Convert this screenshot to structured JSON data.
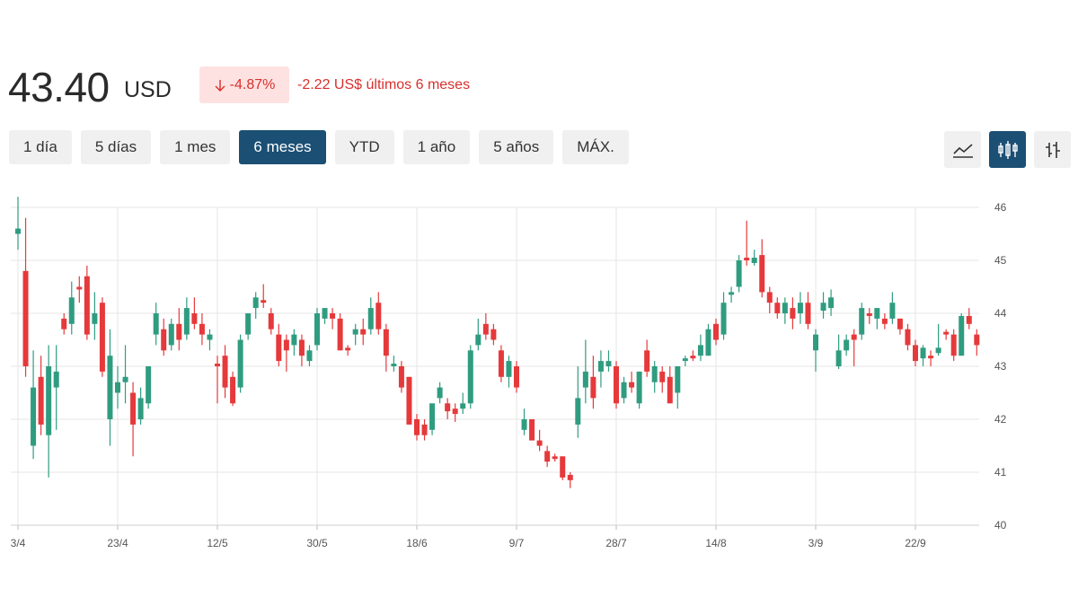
{
  "header": {
    "price": "43.40",
    "currency": "USD",
    "change_pct": "-4.87%",
    "change_abs": "-2.22 US$ últimos 6 meses"
  },
  "ranges": {
    "items": [
      "1 día",
      "5 días",
      "1 mes",
      "6 meses",
      "YTD",
      "1 año",
      "5 años",
      "MÁX."
    ],
    "active": 3
  },
  "chart_data": {
    "type": "candlestick",
    "categories": [
      "3/4",
      null,
      null,
      null,
      null,
      null,
      null,
      null,
      null,
      null,
      null,
      null,
      null,
      "23/4",
      null,
      null,
      null,
      null,
      null,
      null,
      null,
      null,
      null,
      null,
      null,
      null,
      "12/5",
      null,
      null,
      null,
      null,
      null,
      null,
      null,
      null,
      null,
      null,
      null,
      null,
      "30/5",
      null,
      null,
      null,
      null,
      null,
      null,
      null,
      null,
      null,
      null,
      null,
      null,
      "18/6",
      null,
      null,
      null,
      null,
      null,
      null,
      null,
      null,
      null,
      null,
      null,
      null,
      "9/7",
      null,
      null,
      null,
      null,
      null,
      null,
      null,
      null,
      null,
      null,
      null,
      null,
      "28/7",
      null,
      null,
      null,
      null,
      null,
      null,
      null,
      null,
      null,
      null,
      null,
      null,
      "14/8",
      null,
      null,
      null,
      null,
      null,
      null,
      null,
      null,
      null,
      null,
      null,
      null,
      "3/9",
      null,
      null,
      null,
      null,
      null,
      null,
      null,
      null,
      null,
      null,
      null,
      null,
      "22/9",
      null,
      null,
      null,
      null,
      null,
      null,
      null,
      null
    ],
    "open": [
      45.5,
      44.8,
      41.5,
      42.8,
      41.7,
      42.6,
      43.9,
      43.8,
      44.5,
      44.7,
      43.8,
      44.2,
      42.0,
      42.5,
      42.7,
      42.5,
      42.0,
      42.3,
      43.6,
      43.7,
      43.4,
      43.8,
      43.6,
      44.0,
      43.8,
      43.5,
      43.05,
      43.2,
      42.8,
      42.6,
      43.6,
      44.1,
      44.25,
      44.0,
      43.6,
      43.5,
      43.4,
      43.5,
      43.1,
      43.4,
      43.9,
      44.0,
      43.9,
      43.35,
      43.6,
      43.7,
      43.7,
      44.2,
      43.7,
      43.0,
      43.0,
      42.8,
      42.0,
      41.9,
      41.8,
      42.4,
      42.3,
      42.2,
      42.2,
      42.3,
      43.4,
      43.8,
      43.7,
      43.3,
      42.8,
      43.0,
      41.8,
      42.0,
      41.6,
      41.4,
      41.3,
      41.3,
      40.95,
      41.9,
      42.6,
      42.8,
      42.9,
      43.0,
      43.0,
      42.4,
      42.7,
      42.3,
      43.3,
      42.7,
      42.9,
      42.8,
      42.5,
      43.1,
      43.2,
      43.2,
      43.2,
      43.8,
      43.6,
      44.35,
      44.5,
      45.05,
      44.95,
      45.1,
      44.4,
      44.2,
      44.0,
      44.1,
      44.0,
      44.2,
      43.3,
      44.05,
      44.1,
      43.0,
      43.3,
      43.6,
      43.6,
      44.0,
      43.9,
      43.9,
      43.9,
      43.9,
      43.7,
      43.4,
      43.15,
      43.2,
      43.25,
      43.65,
      43.6,
      43.2,
      43.95,
      43.6
    ],
    "high": [
      46.2,
      45.8,
      43.3,
      43.2,
      43.4,
      43.4,
      44.0,
      44.6,
      44.7,
      44.9,
      44.4,
      44.3,
      43.7,
      43.0,
      43.4,
      42.7,
      42.6,
      43.0,
      44.2,
      43.9,
      43.9,
      44.1,
      44.3,
      44.3,
      44.0,
      43.7,
      43.2,
      43.4,
      42.9,
      43.6,
      44.0,
      44.4,
      44.55,
      44.1,
      43.8,
      43.6,
      43.7,
      43.6,
      43.4,
      44.1,
      44.1,
      44.1,
      44.0,
      43.4,
      43.8,
      43.9,
      44.3,
      44.4,
      43.8,
      43.2,
      43.1,
      42.8,
      42.1,
      42.0,
      42.3,
      42.7,
      42.4,
      42.3,
      42.5,
      43.4,
      43.9,
      44.0,
      43.8,
      43.4,
      43.2,
      43.1,
      42.2,
      42.0,
      41.8,
      41.5,
      41.35,
      41.3,
      41.0,
      43.0,
      43.5,
      43.2,
      43.3,
      43.3,
      43.1,
      42.8,
      42.9,
      42.9,
      43.5,
      43.1,
      43.0,
      43.0,
      43.0,
      43.2,
      43.3,
      43.6,
      43.8,
      43.9,
      44.4,
      44.5,
      45.1,
      45.75,
      45.2,
      45.4,
      44.5,
      44.3,
      44.3,
      44.3,
      44.4,
      44.4,
      43.7,
      44.4,
      44.45,
      43.6,
      43.6,
      43.7,
      44.2,
      44.1,
      44.1,
      44.0,
      44.4,
      43.9,
      43.8,
      43.5,
      43.4,
      43.3,
      43.8,
      43.7,
      43.7,
      44.0,
      44.1,
      43.7
    ],
    "low": [
      45.2,
      42.8,
      41.25,
      41.7,
      40.9,
      41.8,
      43.6,
      43.6,
      44.2,
      43.5,
      43.5,
      42.8,
      41.5,
      42.2,
      42.3,
      41.3,
      41.9,
      42.2,
      43.4,
      43.2,
      43.3,
      43.3,
      43.5,
      43.7,
      43.4,
      43.3,
      42.3,
      42.4,
      42.25,
      42.5,
      43.5,
      43.9,
      44.1,
      43.6,
      43.0,
      42.9,
      43.2,
      43.0,
      43.0,
      43.3,
      43.8,
      43.7,
      43.3,
      43.2,
      43.4,
      43.4,
      43.6,
      43.6,
      42.9,
      42.9,
      42.5,
      41.9,
      41.6,
      41.6,
      41.7,
      42.3,
      42.0,
      41.95,
      42.1,
      42.2,
      43.3,
      43.5,
      43.4,
      42.7,
      42.6,
      42.5,
      41.7,
      41.6,
      41.4,
      41.1,
      41.2,
      40.85,
      40.7,
      41.65,
      42.3,
      42.2,
      42.6,
      42.9,
      42.2,
      42.3,
      42.5,
      42.2,
      42.8,
      42.5,
      42.5,
      42.3,
      42.2,
      43.0,
      43.1,
      43.1,
      43.2,
      43.4,
      43.5,
      44.2,
      44.4,
      44.9,
      44.9,
      44.3,
      44.0,
      43.9,
      43.8,
      43.7,
      43.8,
      43.7,
      42.9,
      43.9,
      43.95,
      42.95,
      43.2,
      43.0,
      43.5,
      43.8,
      43.7,
      43.7,
      43.8,
      43.6,
      43.3,
      43.0,
      43.0,
      43.0,
      43.2,
      43.5,
      43.1,
      43.2,
      43.7,
      43.2
    ],
    "close": [
      45.6,
      43.0,
      42.6,
      41.9,
      43.0,
      42.9,
      43.7,
      44.3,
      44.45,
      43.6,
      44.0,
      42.9,
      43.2,
      42.7,
      42.8,
      41.9,
      42.4,
      43.0,
      44.0,
      43.3,
      43.8,
      43.5,
      44.1,
      43.8,
      43.6,
      43.6,
      43.0,
      42.6,
      42.3,
      43.5,
      44.0,
      44.3,
      44.2,
      43.7,
      43.1,
      43.3,
      43.6,
      43.2,
      43.3,
      44.0,
      44.1,
      43.9,
      43.3,
      43.3,
      43.7,
      43.6,
      44.1,
      43.7,
      43.2,
      43.05,
      42.6,
      41.9,
      41.7,
      41.7,
      42.3,
      42.6,
      42.15,
      42.1,
      42.3,
      43.3,
      43.6,
      43.6,
      43.5,
      42.8,
      43.1,
      42.6,
      42.0,
      41.6,
      41.5,
      41.2,
      41.25,
      40.9,
      40.85,
      42.4,
      42.9,
      42.4,
      43.1,
      43.1,
      42.3,
      42.7,
      42.6,
      42.9,
      42.9,
      43.0,
      42.7,
      42.3,
      43.0,
      43.15,
      43.15,
      43.4,
      43.7,
      43.5,
      44.2,
      44.4,
      45.0,
      45.0,
      45.05,
      44.4,
      44.2,
      44.0,
      44.2,
      43.9,
      44.2,
      43.8,
      43.6,
      44.2,
      44.3,
      43.3,
      43.5,
      43.5,
      44.1,
      43.95,
      44.1,
      43.8,
      44.2,
      43.7,
      43.4,
      43.1,
      43.35,
      43.15,
      43.35,
      43.6,
      43.2,
      43.95,
      43.8,
      43.4
    ],
    "up_color": "#2f9c80",
    "down_color": "#e5393b",
    "ylim": [
      40,
      46
    ],
    "yticks": [
      40,
      41,
      42,
      43,
      44,
      45,
      46
    ],
    "grid": true
  }
}
